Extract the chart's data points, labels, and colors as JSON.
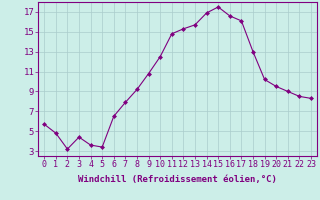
{
  "x": [
    0,
    1,
    2,
    3,
    4,
    5,
    6,
    7,
    8,
    9,
    10,
    11,
    12,
    13,
    14,
    15,
    16,
    17,
    18,
    19,
    20,
    21,
    22,
    23
  ],
  "y": [
    5.7,
    4.8,
    3.2,
    4.4,
    3.6,
    3.4,
    6.5,
    7.9,
    9.2,
    10.8,
    12.5,
    14.8,
    15.3,
    15.7,
    16.9,
    17.5,
    16.6,
    16.1,
    13.0,
    10.2,
    9.5,
    9.0,
    8.5,
    8.3
  ],
  "line_color": "#800080",
  "marker": "D",
  "marker_size": 2,
  "bg_color": "#cceee8",
  "grid_color": "#aacccc",
  "xlabel": "Windchill (Refroidissement éolien,°C)",
  "xlabel_color": "#800080",
  "ylabel_ticks": [
    3,
    5,
    7,
    9,
    11,
    13,
    15,
    17
  ],
  "xtick_labels": [
    "0",
    "1",
    "2",
    "3",
    "4",
    "5",
    "6",
    "7",
    "8",
    "9",
    "10",
    "11",
    "12",
    "13",
    "14",
    "15",
    "16",
    "17",
    "18",
    "19",
    "20",
    "21",
    "22",
    "23"
  ],
  "ylim": [
    2.5,
    18.0
  ],
  "xlim": [
    -0.5,
    23.5
  ],
  "tick_color": "#800080",
  "spine_color": "#800080",
  "font_size": 6.5
}
